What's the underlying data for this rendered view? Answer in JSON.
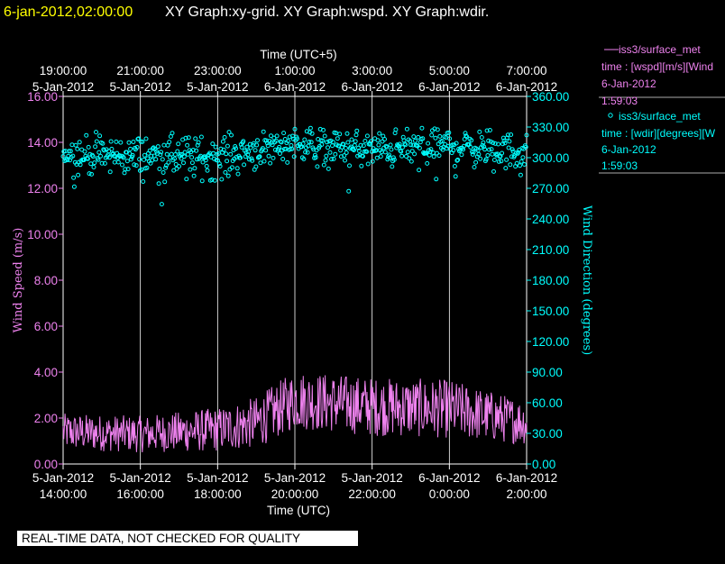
{
  "header": {
    "timestamp": "6-jan-2012,02:00:00",
    "title": "XY Graph:xy-grid.  XY Graph:wspd.  XY Graph:wdir."
  },
  "colors": {
    "background": "#000000",
    "timestamp": "#ffff00",
    "text": "#ffffff",
    "wspd": "#ee82ee",
    "wdir": "#00ffff",
    "grid": "#ffffff"
  },
  "legend": [
    {
      "symbol_name": "line-symbol",
      "line1": "iss3/surface_met",
      "line2": "time : [wspd][m/s][Wind",
      "line3": "6-Jan-2012",
      "line4": "1:59:03"
    },
    {
      "symbol_name": "circle-symbol",
      "line1": "iss3/surface_met",
      "line2": "time : [wdir][degrees][W",
      "line3": "6-Jan-2012",
      "line4": "1:59:03"
    }
  ],
  "footer": {
    "notice": "REAL-TIME DATA, NOT CHECKED FOR QUALITY"
  },
  "chart_data": {
    "type": "line",
    "top_axis": {
      "label": "Time (UTC+5)",
      "ticks": [
        {
          "time": "19:00:00",
          "date": "5-Jan-2012"
        },
        {
          "time": "21:00:00",
          "date": "5-Jan-2012"
        },
        {
          "time": "23:00:00",
          "date": "5-Jan-2012"
        },
        {
          "time": "1:00:00",
          "date": "6-Jan-2012"
        },
        {
          "time": "3:00:00",
          "date": "6-Jan-2012"
        },
        {
          "time": "5:00:00",
          "date": "6-Jan-2012"
        },
        {
          "time": "7:00:00",
          "date": "6-Jan-2012"
        }
      ]
    },
    "bottom_axis": {
      "label": "Time (UTC)",
      "range": [
        "2012-01-05 14:00",
        "2012-01-06 02:00"
      ],
      "ticks": [
        {
          "date": "5-Jan-2012",
          "time": "14:00:00"
        },
        {
          "date": "5-Jan-2012",
          "time": "16:00:00"
        },
        {
          "date": "5-Jan-2012",
          "time": "18:00:00"
        },
        {
          "date": "5-Jan-2012",
          "time": "20:00:00"
        },
        {
          "date": "5-Jan-2012",
          "time": "22:00:00"
        },
        {
          "date": "6-Jan-2012",
          "time": "0:00:00"
        },
        {
          "date": "6-Jan-2012",
          "time": "2:00:00"
        }
      ]
    },
    "left_axis": {
      "label": "Wind Speed (m/s)",
      "range": [
        0,
        16
      ],
      "ticks": [
        "0.00",
        "2.00",
        "4.00",
        "6.00",
        "8.00",
        "10.00",
        "12.00",
        "14.00",
        "16.00"
      ]
    },
    "right_axis": {
      "label": "Wind Direction (degrees)",
      "range": [
        0,
        360
      ],
      "ticks": [
        "0.00",
        "30.00",
        "60.00",
        "90.00",
        "120.00",
        "150.00",
        "180.00",
        "210.00",
        "240.00",
        "270.00",
        "300.00",
        "330.00",
        "360.00"
      ]
    },
    "grid": "vertical lines at bottom-axis ticks",
    "series": [
      {
        "name": "iss3/surface_met wspd",
        "style": "line",
        "axis": "left",
        "profile": [
          {
            "time": "2012-01-05 14:00",
            "mean": 1.4,
            "spread": 0.5
          },
          {
            "time": "2012-01-05 16:00",
            "mean": 1.3,
            "spread": 0.5
          },
          {
            "time": "2012-01-05 18:00",
            "mean": 1.5,
            "spread": 0.6
          },
          {
            "time": "2012-01-05 19:00",
            "mean": 1.8,
            "spread": 0.7
          },
          {
            "time": "2012-01-05 20:00",
            "mean": 2.8,
            "spread": 0.8
          },
          {
            "time": "2012-01-05 22:00",
            "mean": 2.5,
            "spread": 0.8
          },
          {
            "time": "2012-01-06 00:00",
            "mean": 2.4,
            "spread": 0.8
          },
          {
            "time": "2012-01-06 02:00",
            "mean": 1.8,
            "spread": 0.6
          }
        ]
      },
      {
        "name": "iss3/surface_met wdir",
        "style": "circle",
        "axis": "right",
        "profile": [
          {
            "time": "2012-01-05 14:00",
            "mean": 303,
            "spread": 12
          },
          {
            "time": "2012-01-05 18:00",
            "mean": 300,
            "spread": 14
          },
          {
            "time": "2012-01-05 20:00",
            "mean": 315,
            "spread": 10
          },
          {
            "time": "2012-01-05 22:00",
            "mean": 307,
            "spread": 12
          },
          {
            "time": "2012-01-06 00:00",
            "mean": 312,
            "spread": 12
          },
          {
            "time": "2012-01-06 02:00",
            "mean": 305,
            "spread": 12
          }
        ]
      }
    ]
  }
}
